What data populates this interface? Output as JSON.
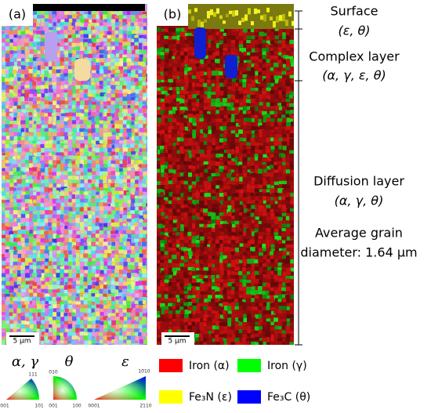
{
  "panels": {
    "a": {
      "label": "(a)",
      "scale_bar": "5 μm"
    },
    "b": {
      "label": "(b)",
      "scale_bar": "5 μm"
    }
  },
  "annotations": {
    "surface": "Surface",
    "surface_phases": "(ε, θ)",
    "complex": "Complex layer",
    "complex_phases": "(α, γ, ε, θ)",
    "diffusion": "Diffusion layer",
    "diffusion_phases": "(α, γ, θ)",
    "grain_1": "Average grain",
    "grain_2": "diameter: 1.64 μm"
  },
  "ipf": [
    {
      "title": "α, γ",
      "corners": [
        "111",
        "001",
        "101"
      ]
    },
    {
      "title": "θ",
      "corners": [
        "010",
        "100",
        "001"
      ]
    },
    {
      "title": "ε",
      "corners": [
        "10̄10",
        "0001",
        "2̄110"
      ]
    }
  ],
  "legend": [
    "Iron (α)",
    "Iron (γ)",
    "Fe₃N (ε)",
    "Fe₃C (θ)"
  ]
}
